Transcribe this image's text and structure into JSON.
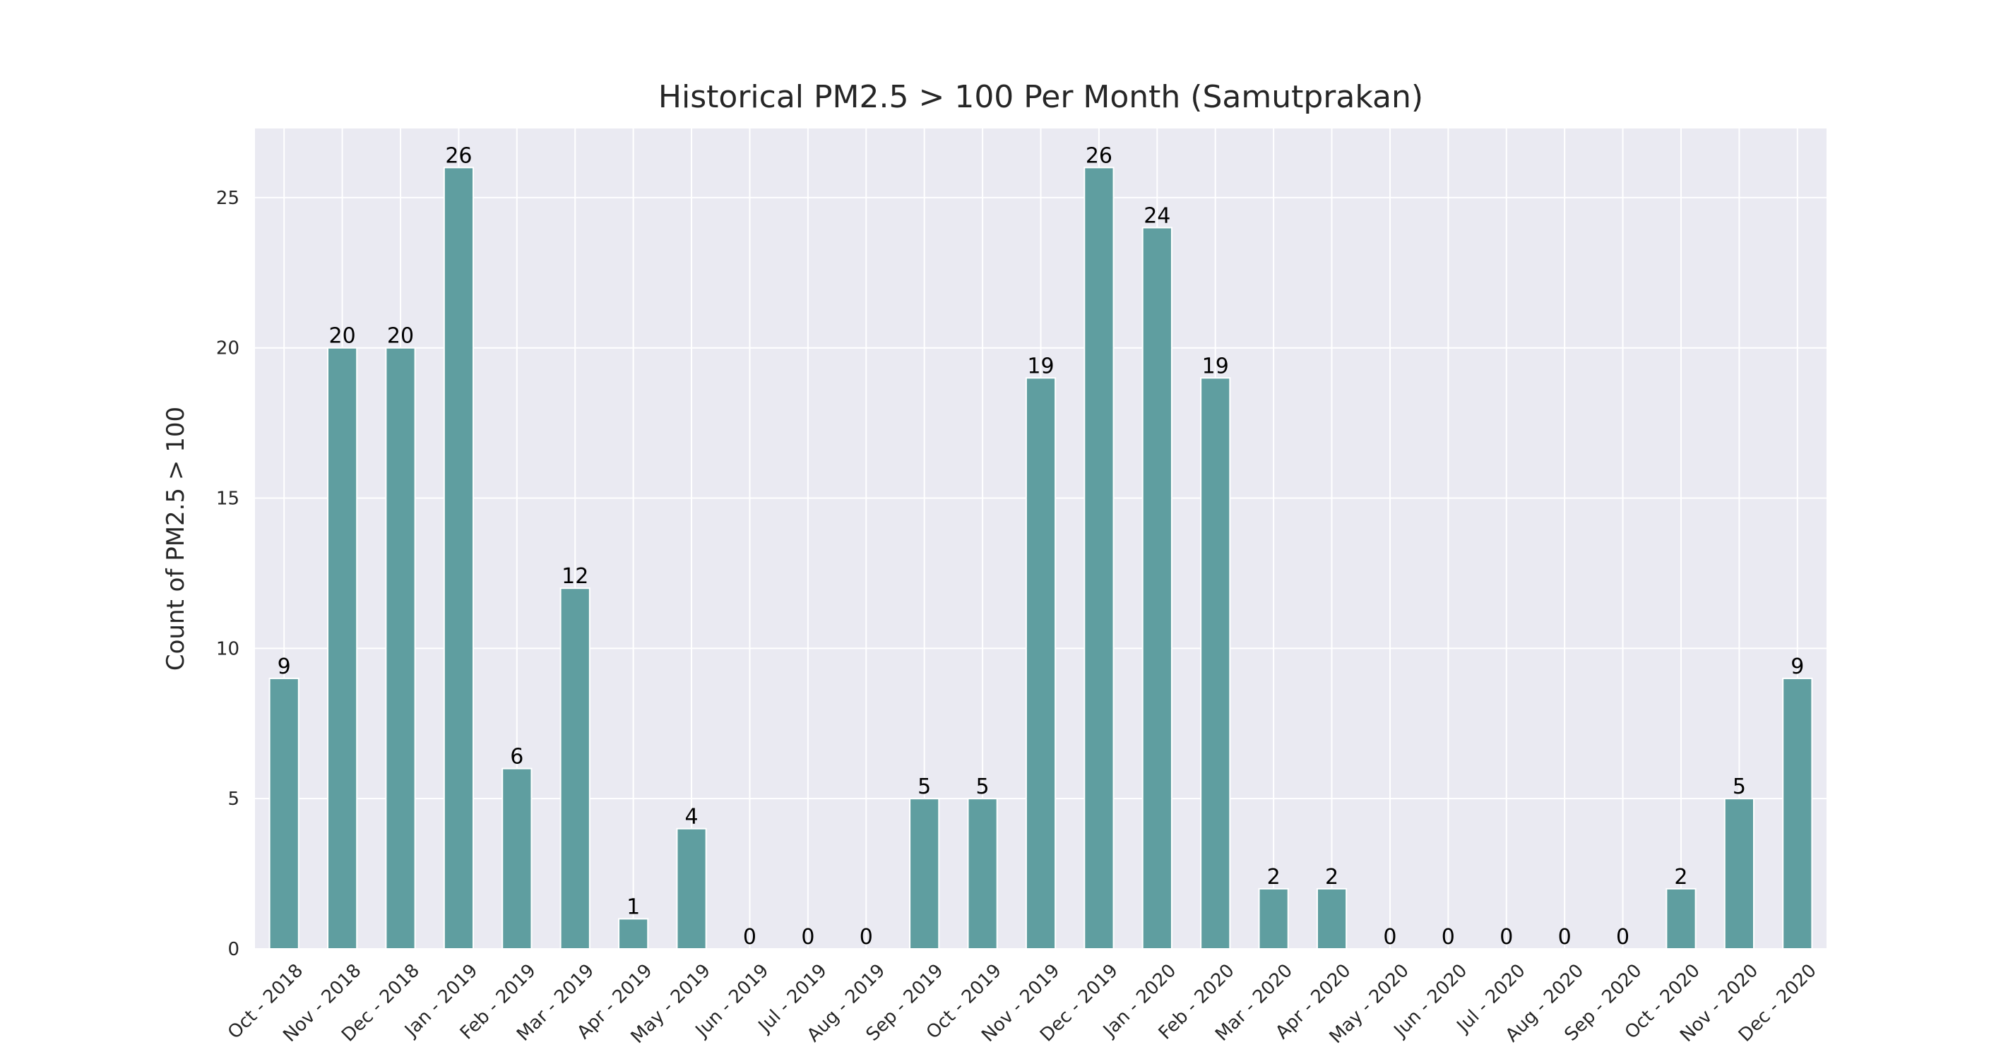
{
  "chart_data": {
    "type": "bar",
    "title": "Historical PM2.5 > 100 Per Month (Samutprakan)",
    "xlabel": "",
    "ylabel": "Count of PM2.5 > 100",
    "ylim": [
      0,
      27.3
    ],
    "yticks": [
      0,
      5,
      10,
      15,
      20,
      25
    ],
    "grid": true,
    "legend": "none",
    "bar_color": "#5f9ea0",
    "background_color": "#eaeaf2",
    "categories": [
      "Oct - 2018",
      "Nov - 2018",
      "Dec - 2018",
      "Jan - 2019",
      "Feb - 2019",
      "Mar - 2019",
      "Apr - 2019",
      "May - 2019",
      "Jun - 2019",
      "Jul - 2019",
      "Aug - 2019",
      "Sep - 2019",
      "Oct - 2019",
      "Nov - 2019",
      "Dec - 2019",
      "Jan - 2020",
      "Feb - 2020",
      "Mar - 2020",
      "Apr - 2020",
      "May - 2020",
      "Jun - 2020",
      "Jul - 2020",
      "Aug - 2020",
      "Sep - 2020",
      "Oct - 2020",
      "Nov - 2020",
      "Dec - 2020"
    ],
    "values": [
      9,
      20,
      20,
      26,
      6,
      12,
      1,
      4,
      0,
      0,
      0,
      5,
      5,
      19,
      26,
      24,
      19,
      2,
      2,
      0,
      0,
      0,
      0,
      0,
      2,
      5,
      9
    ]
  }
}
